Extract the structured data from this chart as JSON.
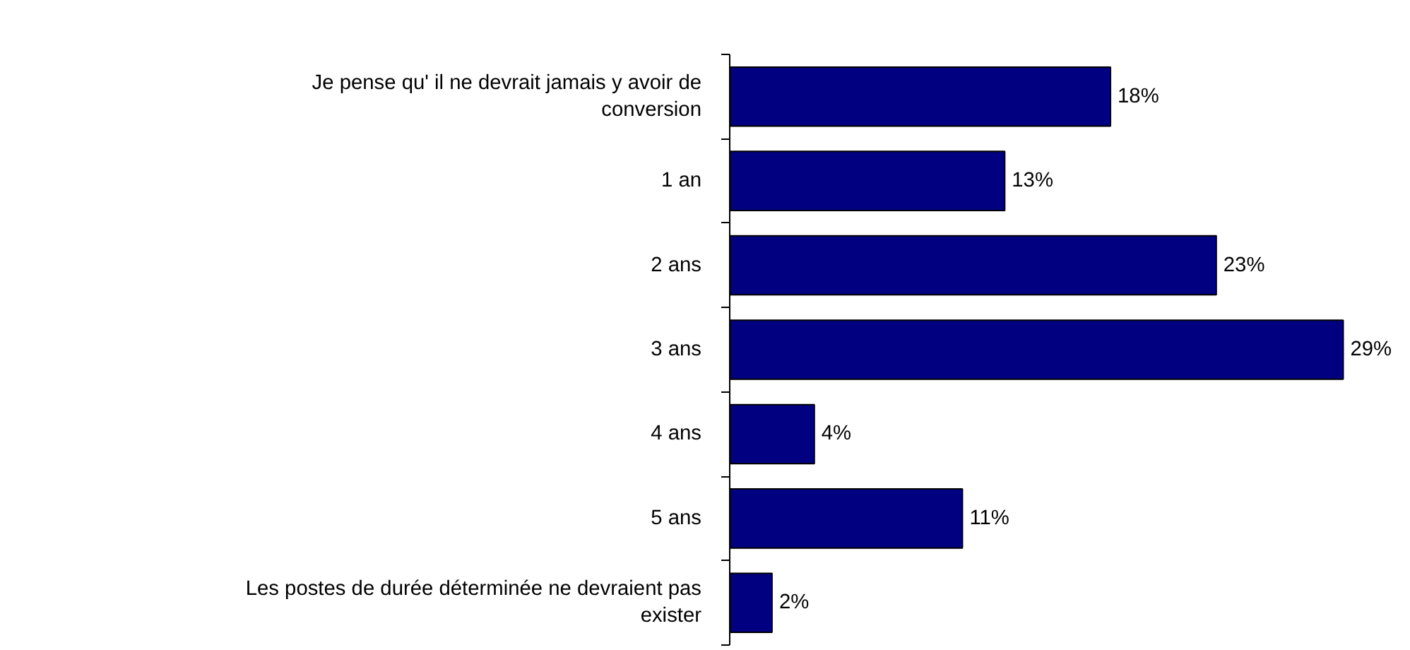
{
  "chart_data": {
    "type": "bar",
    "orientation": "horizontal",
    "categories": [
      "Je pense qu' il ne devrait jamais y avoir de conversion",
      "1 an",
      "2 ans",
      "3 ans",
      "4 ans",
      "5 ans",
      "Les postes de durée déterminée ne devraient pas exister"
    ],
    "values": [
      18,
      13,
      23,
      29,
      4,
      11,
      2
    ],
    "value_labels": [
      "18%",
      "13%",
      "23%",
      "29%",
      "4%",
      "11%",
      "2%"
    ],
    "color": "#000080"
  }
}
